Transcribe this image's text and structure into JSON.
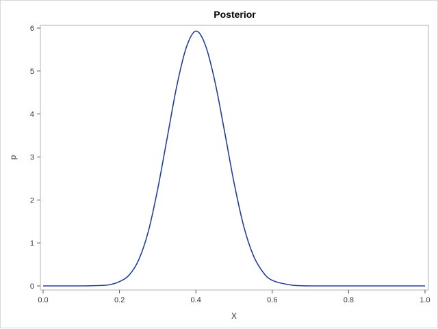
{
  "chart_data": {
    "type": "line",
    "title": "Posterior",
    "xlabel": "X",
    "ylabel": "p",
    "xlim": [
      0,
      1
    ],
    "ylim": [
      0,
      6.07
    ],
    "x_ticks": [
      0.0,
      0.2,
      0.4,
      0.6,
      0.8,
      1.0
    ],
    "x_tick_labels": [
      "0.0",
      "0.2",
      "0.4",
      "0.6",
      "0.8",
      "1.0"
    ],
    "y_ticks": [
      0,
      1,
      2,
      3,
      4,
      5,
      6
    ],
    "y_tick_labels": [
      "0",
      "1",
      "2",
      "3",
      "4",
      "5",
      "6"
    ],
    "grid": false,
    "legend": "none",
    "series": [
      {
        "color": "#1f3f9b",
        "x": [
          0.0,
          0.05,
          0.1,
          0.15,
          0.175,
          0.2,
          0.225,
          0.25,
          0.275,
          0.3,
          0.325,
          0.35,
          0.375,
          0.4,
          0.425,
          0.45,
          0.475,
          0.5,
          0.525,
          0.55,
          0.575,
          0.6,
          0.65,
          0.7,
          0.8,
          0.9,
          1.0
        ],
        "y": [
          0.0,
          0.0,
          0.0,
          0.01,
          0.03,
          0.1,
          0.25,
          0.6,
          1.25,
          2.25,
          3.45,
          4.65,
          5.55,
          5.93,
          5.6,
          4.75,
          3.6,
          2.4,
          1.4,
          0.72,
          0.33,
          0.13,
          0.02,
          0.0,
          0.0,
          0.0,
          0.0
        ]
      }
    ]
  }
}
